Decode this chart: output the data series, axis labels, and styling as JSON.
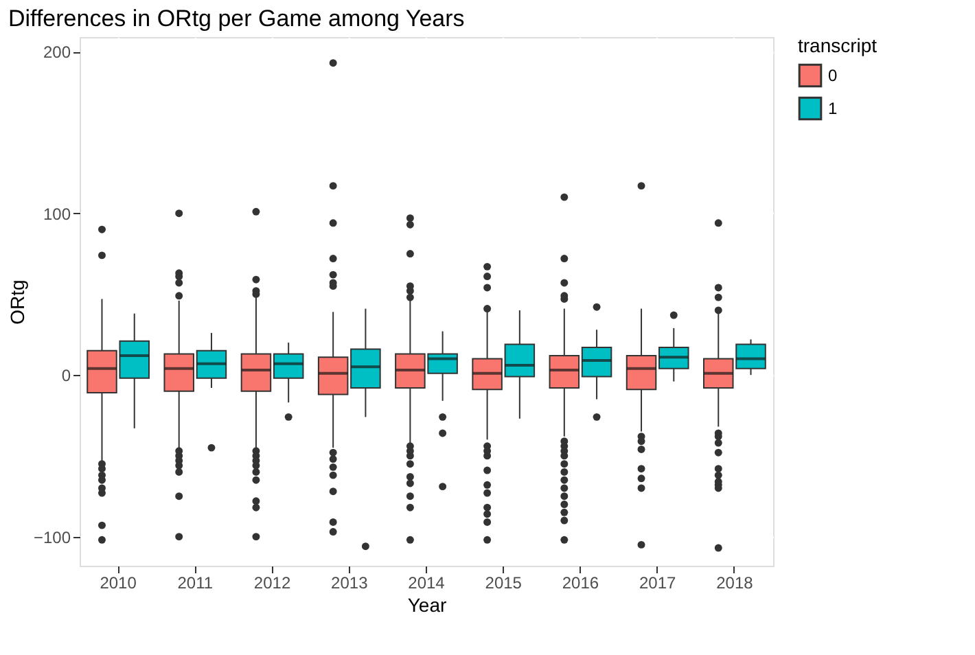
{
  "chart_data": {
    "type": "box",
    "title": "Differences in ORtg per Game among Years",
    "xlabel": "Year",
    "ylabel": "ORtg",
    "legend_title": "transcript",
    "legend": "right",
    "grid": true,
    "categories": [
      "2010",
      "2011",
      "2012",
      "2013",
      "2014",
      "2015",
      "2016",
      "2017",
      "2018"
    ],
    "ylim": [
      -118,
      209
    ],
    "yticks": [
      -100,
      0,
      100,
      200
    ],
    "series": [
      {
        "name": "0",
        "color": "#f8766d",
        "boxes": [
          {
            "low": -53,
            "q1": -11,
            "median": 4,
            "q3": 15,
            "high": 47,
            "outliers": [
              90,
              74,
              -55,
              -58,
              -62,
              -65,
              -70,
              -73,
              -93,
              -102
            ]
          },
          {
            "low": -45,
            "q1": -10,
            "median": 4,
            "q3": 13,
            "high": 46,
            "outliers": [
              100,
              63,
              61,
              57,
              49,
              -47,
              -50,
              -53,
              -56,
              -60,
              -75,
              -100
            ]
          },
          {
            "low": -45,
            "q1": -10,
            "median": 3,
            "q3": 13,
            "high": 48,
            "outliers": [
              101,
              59,
              52,
              50,
              -47,
              -50,
              -53,
              -56,
              -60,
              -65,
              -78,
              -82,
              -100
            ]
          },
          {
            "low": -45,
            "q1": -12,
            "median": 1,
            "q3": 11,
            "high": 39,
            "outliers": [
              193,
              117,
              94,
              72,
              62,
              57,
              55,
              -48,
              -52,
              -57,
              -62,
              -72,
              -91,
              -97
            ]
          },
          {
            "low": -42,
            "q1": -8,
            "median": 3,
            "q3": 13,
            "high": 47,
            "outliers": [
              97,
              93,
              75,
              55,
              52,
              48,
              -44,
              -47,
              -50,
              -55,
              -63,
              -67,
              -75,
              -82,
              -102
            ]
          },
          {
            "low": -40,
            "q1": -9,
            "median": 1,
            "q3": 10,
            "high": 40,
            "outliers": [
              67,
              61,
              54,
              41,
              -44,
              -47,
              -50,
              -59,
              -68,
              -73,
              -82,
              -86,
              -91,
              -102
            ]
          },
          {
            "low": -38,
            "q1": -8,
            "median": 3,
            "q3": 12,
            "high": 41,
            "outliers": [
              110,
              72,
              57,
              49,
              47,
              -41,
              -44,
              -47,
              -50,
              -55,
              -60,
              -65,
              -70,
              -75,
              -80,
              -85,
              -90,
              -102
            ]
          },
          {
            "low": -35,
            "q1": -9,
            "median": 4,
            "q3": 12,
            "high": 41,
            "outliers": [
              117,
              -38,
              -41,
              -46,
              -58,
              -64,
              -70,
              -105
            ]
          },
          {
            "low": -32,
            "q1": -8,
            "median": 1,
            "q3": 10,
            "high": 40,
            "outliers": [
              94,
              54,
              48,
              40,
              -36,
              -38,
              -42,
              -48,
              -58,
              -62,
              -66,
              -68,
              -70,
              -107
            ]
          }
        ]
      },
      {
        "name": "1",
        "color": "#00bfc4",
        "boxes": [
          {
            "low": -33,
            "q1": -2,
            "median": 12,
            "q3": 21,
            "high": 38
          },
          {
            "low": -8,
            "q1": -2,
            "median": 7,
            "q3": 15,
            "high": 26,
            "outliers": [
              -45
            ]
          },
          {
            "low": -17,
            "q1": -2,
            "median": 7,
            "q3": 13,
            "high": 20,
            "outliers": [
              -26
            ]
          },
          {
            "low": -26,
            "q1": -8,
            "median": 5,
            "q3": 16,
            "high": 41,
            "outliers": [
              -106
            ]
          },
          {
            "low": -16,
            "q1": 1,
            "median": 10,
            "q3": 13,
            "high": 27,
            "outliers": [
              -26,
              -36,
              -69
            ]
          },
          {
            "low": -27,
            "q1": -1,
            "median": 6,
            "q3": 19,
            "high": 40
          },
          {
            "low": -15,
            "q1": -1,
            "median": 9,
            "q3": 17,
            "high": 28,
            "outliers": [
              42,
              -26
            ]
          },
          {
            "low": -4,
            "q1": 4,
            "median": 11,
            "q3": 17,
            "high": 29,
            "outliers": [
              37
            ]
          },
          {
            "low": 0,
            "q1": 4,
            "median": 10,
            "q3": 19,
            "high": 22
          }
        ]
      }
    ]
  }
}
